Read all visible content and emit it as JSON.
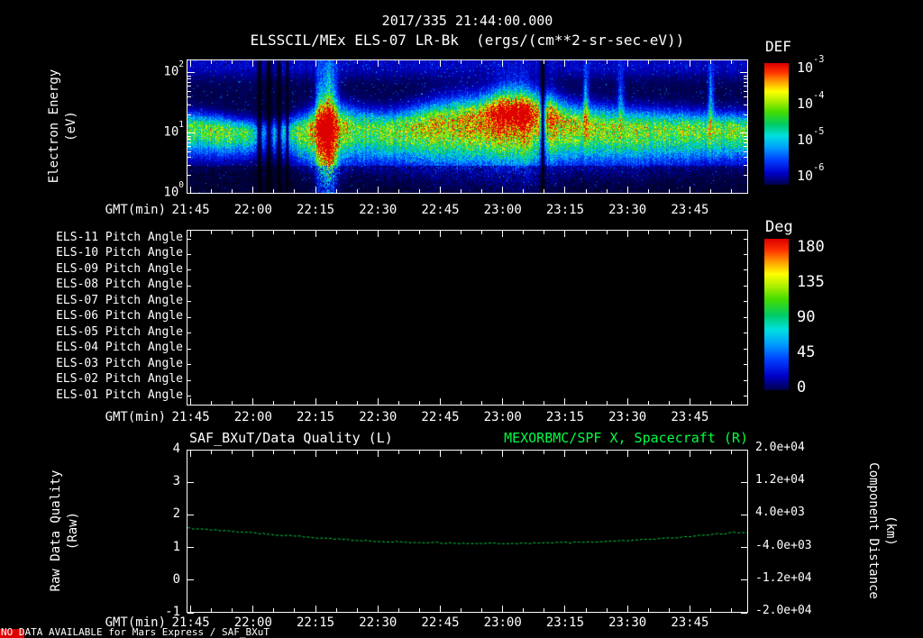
{
  "titles": {
    "datetime": "2017/335 21:44:00.000",
    "main": "ELSSCIL/MEx ELS-07 LR-Bk  (ergs/(cm**2-sr-sec-eV))"
  },
  "time_axis": {
    "label": "GMT(min)",
    "start": "21:44",
    "end": "23:59",
    "ticks": [
      "21:45",
      "22:00",
      "22:15",
      "22:30",
      "22:45",
      "23:00",
      "23:15",
      "23:30",
      "23:45"
    ]
  },
  "spectrogram_panel": {
    "ylabel_line1": "Electron Energy",
    "ylabel_line2": "(eV)",
    "yticks": [
      {
        "base": "10",
        "exp": "2"
      },
      {
        "base": "10",
        "exp": "1"
      },
      {
        "base": "10",
        "exp": "0"
      }
    ],
    "colorbar": {
      "title": "DEF",
      "ticks": [
        {
          "base": "10",
          "exp": "-3"
        },
        {
          "base": "10",
          "exp": "-4"
        },
        {
          "base": "10",
          "exp": "-5"
        },
        {
          "base": "10",
          "exp": "-6"
        }
      ]
    }
  },
  "pitch_panel": {
    "row_labels": [
      "ELS-11 Pitch Angle",
      "ELS-10 Pitch Angle",
      "ELS-09 Pitch Angle",
      "ELS-08 Pitch Angle",
      "ELS-07 Pitch Angle",
      "ELS-06 Pitch Angle",
      "ELS-05 Pitch Angle",
      "ELS-04 Pitch Angle",
      "ELS-03 Pitch Angle",
      "ELS-02 Pitch Angle",
      "ELS-01 Pitch Angle"
    ],
    "colorbar": {
      "title": "Deg",
      "ticks": [
        "180",
        "135",
        "90",
        "45",
        "0"
      ]
    }
  },
  "bottom_panel": {
    "title_left": "SAF_BXuT/Data Quality (L)",
    "title_right": "MEXORBMC/SPF X, Spacecraft (R)",
    "left_axis": {
      "label_line1": "Raw Data Quality",
      "label_line2": "(Raw)",
      "ticks": [
        "4",
        "3",
        "2",
        "1",
        "0",
        "-1"
      ]
    },
    "right_axis": {
      "label_line1": "Component Distance",
      "label_line2": "(km)",
      "ticks": [
        "2.0e+04",
        "1.2e+04",
        "4.0e+03",
        "-4.0e+03",
        "-1.2e+04",
        "-2.0e+04"
      ]
    }
  },
  "footer": {
    "no_data_text": "NO DATA AVAILABLE for Mars Express / SAF_BXuT"
  },
  "colors": {
    "background": "#000000",
    "foreground": "#ffffff",
    "title_green": "#00ff41",
    "line_green": "#00cc44",
    "indicator_red": "#dd0000",
    "colormap_stops": [
      [
        0.0,
        "#000006"
      ],
      [
        0.05,
        "#00004e"
      ],
      [
        0.14,
        "#0000cc"
      ],
      [
        0.24,
        "#0040ff"
      ],
      [
        0.34,
        "#00a0ff"
      ],
      [
        0.43,
        "#00e0e0"
      ],
      [
        0.52,
        "#00cc66"
      ],
      [
        0.62,
        "#44dd00"
      ],
      [
        0.7,
        "#a8ee00"
      ],
      [
        0.78,
        "#ffff00"
      ],
      [
        0.86,
        "#ff9900"
      ],
      [
        0.93,
        "#ff3300"
      ],
      [
        1.0,
        "#dd0000"
      ]
    ]
  },
  "chart_data": [
    {
      "type": "heatmap",
      "name": "electron-energy-spectrogram",
      "title": "ELSSCIL/MEx ELS-07 LR-Bk",
      "units": "ergs/(cm**2-sr-sec-eV)",
      "x_range": [
        "21:44",
        "23:59"
      ],
      "x_ticks": [
        "21:45",
        "22:00",
        "22:15",
        "22:30",
        "22:45",
        "23:00",
        "23:15",
        "23:30",
        "23:45"
      ],
      "y_label": "Electron Energy (eV)",
      "y_scale": "log",
      "y_range_ev": [
        1,
        166
      ],
      "color_label": "DEF",
      "color_range": [
        "1e-6",
        "1e-3"
      ],
      "description": "Continuous 10-30 eV electron flux band: green-cyan 21:44-21:54, dark dropout columns 21:55-22:08, bright plume to ~100 eV near 22:15, broad green-yellow band 22:20-22:50, peak orange-red enhancement 22:53-23:05, narrow dropout ~23:08, moderate green band with faint blue vertical enhancements 23:10-23:59.",
      "model": {
        "seed": 20171335,
        "log_top": 2.22,
        "band_amp_keys": [
          [
            0,
            0.55
          ],
          [
            0.06,
            0.6
          ],
          [
            0.1,
            0.5
          ],
          [
            0.13,
            0.35
          ],
          [
            0.17,
            0.38
          ],
          [
            0.2,
            0.55
          ],
          [
            0.23,
            0.75
          ],
          [
            0.252,
            0.95
          ],
          [
            0.27,
            0.7
          ],
          [
            0.31,
            0.55
          ],
          [
            0.38,
            0.62
          ],
          [
            0.46,
            0.7
          ],
          [
            0.52,
            0.8
          ],
          [
            0.56,
            0.95
          ],
          [
            0.6,
            1.0
          ],
          [
            0.625,
            0.8
          ],
          [
            0.65,
            0.8
          ],
          [
            0.7,
            0.65
          ],
          [
            0.78,
            0.6
          ],
          [
            0.88,
            0.58
          ],
          [
            1,
            0.56
          ]
        ],
        "band_center_keys": [
          [
            0,
            1.08
          ],
          [
            0.12,
            1.0
          ],
          [
            0.2,
            1.02
          ],
          [
            0.25,
            1.12
          ],
          [
            0.35,
            1.05
          ],
          [
            0.5,
            1.18
          ],
          [
            0.58,
            1.3
          ],
          [
            0.63,
            1.25
          ],
          [
            0.7,
            1.12
          ],
          [
            0.8,
            1.06
          ],
          [
            1,
            1.05
          ]
        ],
        "band_width_keys": [
          [
            0,
            0.16
          ],
          [
            0.15,
            0.13
          ],
          [
            0.25,
            0.22
          ],
          [
            0.35,
            0.2
          ],
          [
            0.5,
            0.26
          ],
          [
            0.6,
            0.3
          ],
          [
            0.7,
            0.22
          ],
          [
            1,
            0.18
          ]
        ],
        "plumes": [
          [
            0.252,
            0.013,
            0.85
          ],
          [
            0.235,
            0.006,
            0.45
          ]
        ],
        "dark_stripes": [
          [
            0.128,
            0.0045
          ],
          [
            0.145,
            0.006
          ],
          [
            0.163,
            0.0045
          ],
          [
            0.178,
            0.003
          ],
          [
            0.635,
            0.005
          ]
        ],
        "bright_cols": [
          [
            0.712,
            0.005,
            0.28
          ],
          [
            0.775,
            0.006,
            0.22
          ],
          [
            0.936,
            0.005,
            0.3
          ]
        ],
        "hot_blob": {
          "t": 0.585,
          "tw": 0.05,
          "logc": 1.33,
          "logw": 0.17,
          "amp": 0.42
        }
      }
    },
    {
      "type": "heatmap",
      "name": "pitch-angle-panels",
      "rows": [
        "ELS-11",
        "ELS-10",
        "ELS-09",
        "ELS-08",
        "ELS-07",
        "ELS-06",
        "ELS-05",
        "ELS-04",
        "ELS-03",
        "ELS-02",
        "ELS-01"
      ],
      "color_label": "Deg",
      "color_range": [
        0,
        180
      ],
      "values": []
    },
    {
      "type": "line",
      "name": "quality-and-distance",
      "x_ticks": [
        "21:45",
        "22:00",
        "22:15",
        "22:30",
        "22:45",
        "23:00",
        "23:15",
        "23:30",
        "23:45"
      ],
      "left_axis": {
        "label": "Raw Data Quality (Raw)",
        "range": [
          -1,
          4
        ]
      },
      "right_axis": {
        "label": "Component Distance (km)",
        "range": [
          -20000,
          20000
        ]
      },
      "series": [
        {
          "name": "SAF_BXuT/Data Quality (L)",
          "axis": "left",
          "points": [],
          "note": "NO DATA AVAILABLE for Mars Express / SAF_BXuT"
        },
        {
          "name": "MEXORBMC/SPF X, Spacecraft (R)",
          "axis": "right",
          "style": "dashed",
          "points": [
            [
              "21:45",
              700
            ],
            [
              "21:51",
              250
            ],
            [
              "21:58",
              -300
            ],
            [
              "22:05",
              -850
            ],
            [
              "22:12",
              -1400
            ],
            [
              "22:19",
              -1900
            ],
            [
              "22:26",
              -2300
            ],
            [
              "22:33",
              -2600
            ],
            [
              "22:40",
              -2800
            ],
            [
              "22:47",
              -2950
            ],
            [
              "22:54",
              -3000
            ],
            [
              "23:01",
              -3000
            ],
            [
              "23:08",
              -2950
            ],
            [
              "23:15",
              -2850
            ],
            [
              "23:22",
              -2650
            ],
            [
              "23:29",
              -2350
            ],
            [
              "23:36",
              -1950
            ],
            [
              "23:43",
              -1450
            ],
            [
              "23:50",
              -850
            ],
            [
              "23:57",
              -250
            ]
          ]
        }
      ]
    }
  ]
}
